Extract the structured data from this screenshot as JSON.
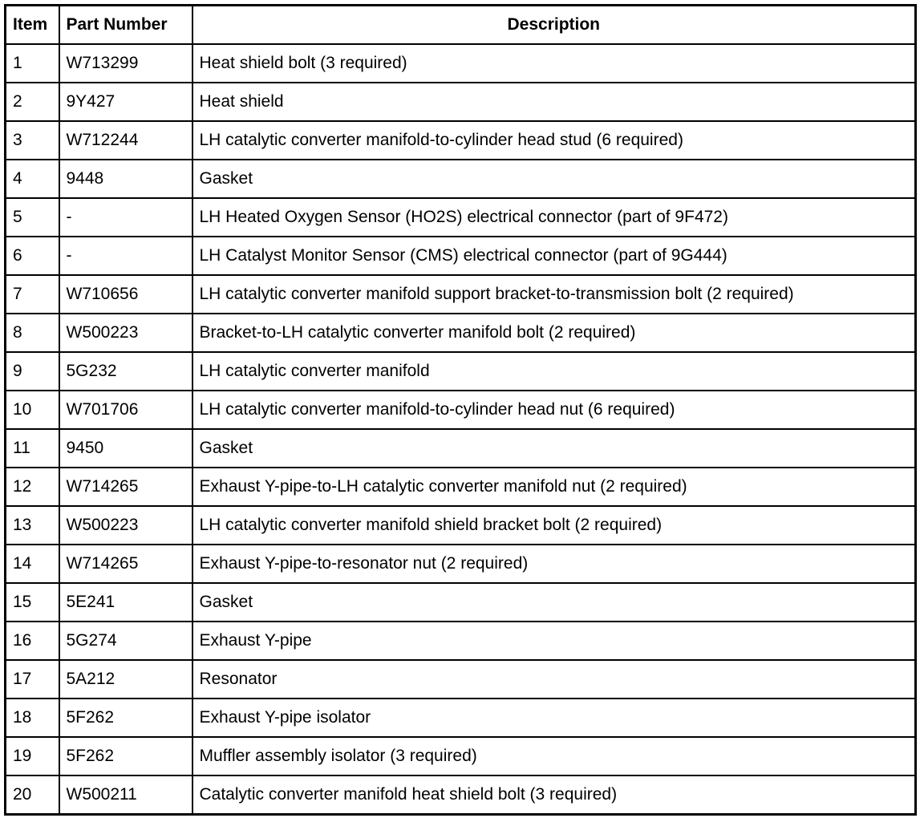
{
  "headers": {
    "item": "Item",
    "part_number": "Part Number",
    "description": "Description"
  },
  "rows": [
    {
      "item": "1",
      "part": "W713299",
      "desc": "Heat shield bolt (3 required)"
    },
    {
      "item": "2",
      "part": "9Y427",
      "desc": "Heat shield"
    },
    {
      "item": "3",
      "part": "W712244",
      "desc": "LH catalytic converter manifold-to-cylinder head stud (6 required)"
    },
    {
      "item": "4",
      "part": "9448",
      "desc": "Gasket"
    },
    {
      "item": "5",
      "part": "-",
      "desc": "LH Heated Oxygen Sensor (HO2S) electrical connector (part of 9F472)"
    },
    {
      "item": "6",
      "part": "-",
      "desc": "LH Catalyst Monitor Sensor (CMS) electrical connector (part of 9G444)"
    },
    {
      "item": "7",
      "part": "W710656",
      "desc": "LH catalytic converter manifold support bracket-to-transmission bolt (2 required)"
    },
    {
      "item": "8",
      "part": "W500223",
      "desc": "Bracket-to-LH catalytic converter manifold bolt (2 required)"
    },
    {
      "item": "9",
      "part": "5G232",
      "desc": "LH catalytic converter manifold"
    },
    {
      "item": "10",
      "part": "W701706",
      "desc": "LH catalytic converter manifold-to-cylinder head nut (6 required)"
    },
    {
      "item": "11",
      "part": "9450",
      "desc": "Gasket"
    },
    {
      "item": "12",
      "part": "W714265",
      "desc": "Exhaust Y-pipe-to-LH catalytic converter manifold nut (2 required)"
    },
    {
      "item": "13",
      "part": "W500223",
      "desc": "LH catalytic converter manifold shield bracket bolt (2 required)"
    },
    {
      "item": "14",
      "part": "W714265",
      "desc": "Exhaust Y-pipe-to-resonator nut (2 required)"
    },
    {
      "item": "15",
      "part": "5E241",
      "desc": "Gasket"
    },
    {
      "item": "16",
      "part": "5G274",
      "desc": "Exhaust Y-pipe"
    },
    {
      "item": "17",
      "part": "5A212",
      "desc": "Resonator"
    },
    {
      "item": "18",
      "part": "5F262",
      "desc": "Exhaust Y-pipe isolator"
    },
    {
      "item": "19",
      "part": "5F262",
      "desc": "Muffler assembly isolator (3 required)"
    },
    {
      "item": "20",
      "part": "W500211",
      "desc": "Catalytic converter manifold heat shield bolt (3 required)"
    }
  ]
}
